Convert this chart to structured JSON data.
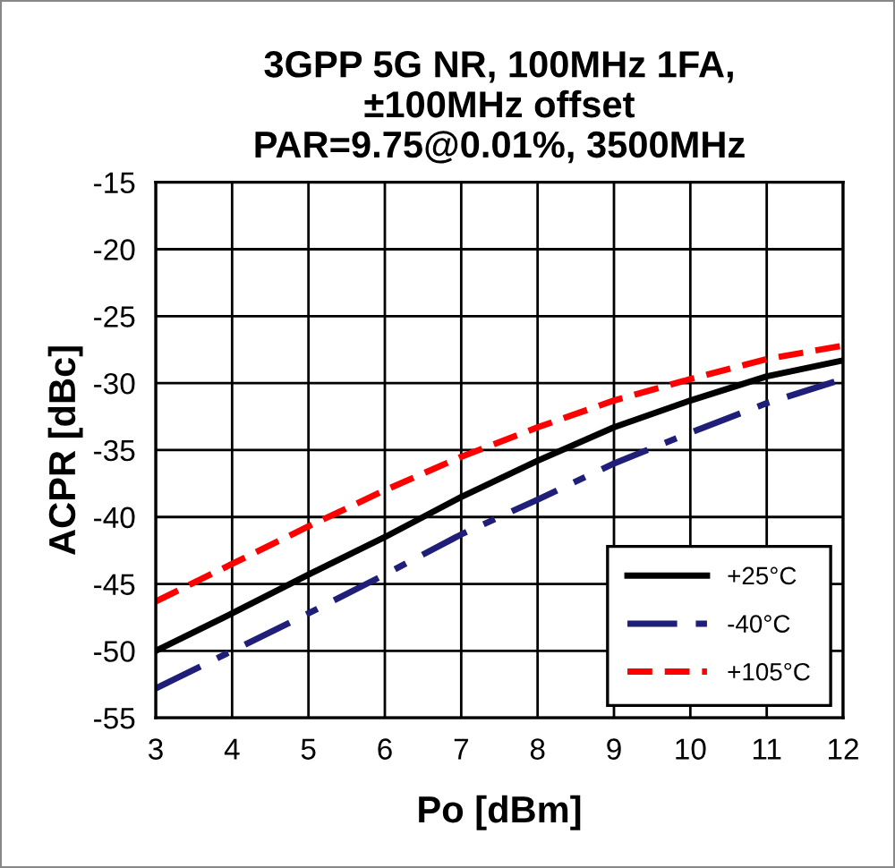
{
  "chart_data": {
    "type": "line",
    "title": "3GPP 5G NR, 100MHz 1FA,\n±100MHz offset\nPAR=9.75@0.01%, 3500MHz",
    "xlabel": "Po [dBm]",
    "ylabel": "ACPR [dBc]",
    "x": [
      3,
      4,
      5,
      6,
      7,
      8,
      9,
      10,
      11,
      12
    ],
    "series": [
      {
        "name": "+25°C",
        "color": "#000000",
        "line_style": "solid",
        "values": [
          -50,
          -47.2,
          -44.3,
          -41.5,
          -38.5,
          -35.8,
          -33.3,
          -31.3,
          -29.5,
          -28.3
        ]
      },
      {
        "name": "-40°C",
        "color": "#1f1f7a",
        "line_style": "dashdot",
        "values": [
          -52.8,
          -50,
          -47.2,
          -44.3,
          -41.3,
          -38.7,
          -36,
          -33.7,
          -31.5,
          -29.7
        ]
      },
      {
        "name": "+105°C",
        "color": "#ff0000",
        "line_style": "dashed",
        "values": [
          -46.3,
          -43.5,
          -40.7,
          -38,
          -35.5,
          -33.3,
          -31.3,
          -29.7,
          -28.2,
          -27.2
        ]
      }
    ],
    "xlim": [
      3,
      12
    ],
    "xticks": [
      3,
      4,
      5,
      6,
      7,
      8,
      9,
      10,
      11,
      12
    ],
    "ylim": [
      -55,
      -15
    ],
    "yticks": [
      -55,
      -50,
      -45,
      -40,
      -35,
      -30,
      -25,
      -20,
      -15
    ],
    "grid": true,
    "legend": "bottom right",
    "marker": "none"
  }
}
